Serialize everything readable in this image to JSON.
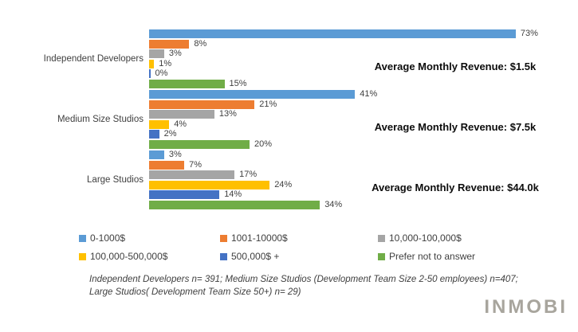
{
  "chart_data": {
    "type": "bar",
    "orientation": "horizontal",
    "title": "",
    "categories": [
      "Independent Developers",
      "Medium Size Studios",
      "Large Studios"
    ],
    "series": [
      {
        "name": "0-1000$",
        "color": "#5B9BD5",
        "values": [
          73,
          41,
          3
        ]
      },
      {
        "name": "1001-10000$",
        "color": "#ED7D31",
        "values": [
          8,
          21,
          7
        ]
      },
      {
        "name": "10,000-100,000$",
        "color": "#A5A5A5",
        "values": [
          3,
          13,
          17
        ]
      },
      {
        "name": "100,000-500,000$",
        "color": "#FFC000",
        "values": [
          1,
          4,
          24
        ]
      },
      {
        "name": "500,000$ +",
        "color": "#4472C4",
        "values": [
          0,
          2,
          14
        ]
      },
      {
        "name": "Prefer not to answer",
        "color": "#70AD47",
        "values": [
          15,
          20,
          34
        ]
      }
    ],
    "value_suffix": "%",
    "xlim": [
      0,
      100
    ],
    "grid": false,
    "legend_position": "bottom",
    "annotations": [
      "Average Monthly Revenue: $1.5k",
      "Average Monthly Revenue: $7.5k",
      "Average Monthly Revenue: $44.0k"
    ]
  },
  "footnote": {
    "line1": "Independent Developers n= 391;  Medium Size Studios (Development Team Size 2-50 employees) n=407;",
    "line2": "Large Studios( Development Team Size 50+) n= 29)"
  },
  "logo_text": "INMOBI"
}
